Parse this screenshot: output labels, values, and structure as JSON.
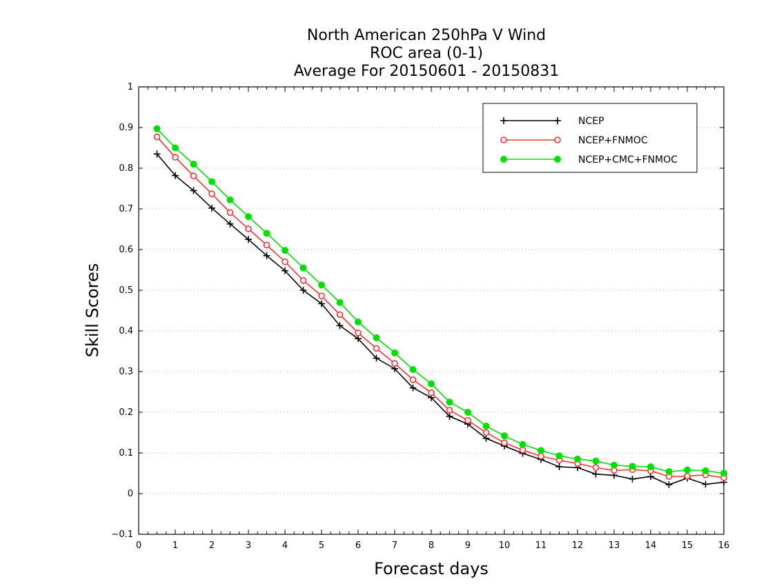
{
  "chart_data": {
    "type": "line",
    "title_lines": [
      "North American 250hPa V Wind",
      "ROC area (0-1)",
      "Average For 20150601 - 20150831"
    ],
    "xlabel": "Forecast days",
    "ylabel": "Skill Scores",
    "xlim": [
      0,
      16
    ],
    "ylim": [
      -0.1,
      1
    ],
    "x_ticks": [
      "0",
      "1",
      "2",
      "3",
      "4",
      "5",
      "6",
      "7",
      "8",
      "9",
      "10",
      "11",
      "12",
      "13",
      "14",
      "15",
      "16"
    ],
    "y_ticks": [
      "−0.1",
      "0",
      "0.1",
      "0.2",
      "0.3",
      "0.4",
      "0.5",
      "0.6",
      "0.7",
      "0.8",
      "0.9",
      "1"
    ],
    "grid": true,
    "legend_position": "top-right",
    "x": [
      0.5,
      1,
      1.5,
      2,
      2.5,
      3,
      3.5,
      4,
      4.5,
      5,
      5.5,
      6,
      6.5,
      7,
      7.5,
      8,
      8.5,
      9,
      9.5,
      10,
      10.5,
      11,
      11.5,
      12,
      12.5,
      13,
      13.5,
      14,
      14.5,
      15,
      15.5,
      16
    ],
    "series": [
      {
        "name": "NCEP",
        "color": "#000000",
        "marker": "plus",
        "values": [
          0.835,
          0.782,
          0.745,
          0.702,
          0.663,
          0.625,
          0.585,
          0.548,
          0.5,
          0.467,
          0.413,
          0.381,
          0.333,
          0.307,
          0.26,
          0.236,
          0.19,
          0.171,
          0.136,
          0.117,
          0.099,
          0.084,
          0.066,
          0.064,
          0.048,
          0.045,
          0.036,
          0.042,
          0.022,
          0.038,
          0.023,
          0.028
        ]
      },
      {
        "name": "NCEP+FNMOC",
        "color": "#ff3030",
        "marker": "open-circle",
        "values": [
          0.877,
          0.827,
          0.781,
          0.737,
          0.691,
          0.651,
          0.611,
          0.57,
          0.524,
          0.486,
          0.44,
          0.395,
          0.357,
          0.32,
          0.28,
          0.248,
          0.205,
          0.18,
          0.15,
          0.125,
          0.107,
          0.092,
          0.082,
          0.074,
          0.064,
          0.057,
          0.059,
          0.056,
          0.042,
          0.043,
          0.046,
          0.039
        ]
      },
      {
        "name": "NCEP+CMC+FNMOC",
        "color": "#00e000",
        "marker": "filled-circle",
        "values": [
          0.897,
          0.85,
          0.81,
          0.767,
          0.722,
          0.681,
          0.64,
          0.598,
          0.555,
          0.513,
          0.47,
          0.422,
          0.383,
          0.346,
          0.305,
          0.27,
          0.225,
          0.2,
          0.166,
          0.142,
          0.121,
          0.106,
          0.093,
          0.085,
          0.08,
          0.07,
          0.067,
          0.066,
          0.054,
          0.058,
          0.056,
          0.05
        ]
      }
    ]
  }
}
